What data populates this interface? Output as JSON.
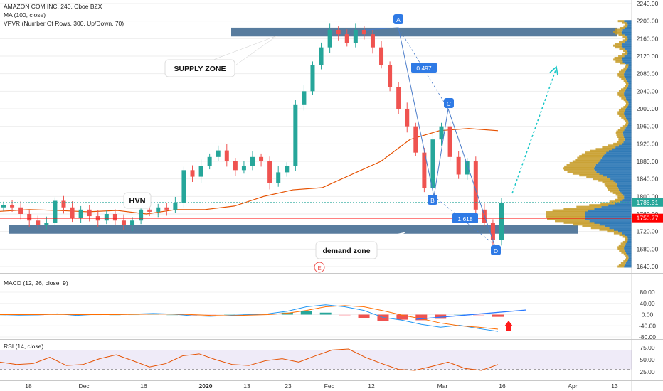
{
  "chart_data": [
    {
      "type": "candlestick",
      "legend": {
        "symbol_line": "AMAZON COM INC, 240, Cboe BZX",
        "ma_line": "MA (100, close)",
        "vpvr_line": "VPVR (Number Of Rows, 300, Up/Down, 70)"
      },
      "y_axis": {
        "range": [
          1620,
          2240
        ],
        "ticks": [
          "2240.00",
          "2200.00",
          "2160.00",
          "2120.00",
          "2080.00",
          "2040.00",
          "2000.00",
          "1960.00",
          "1920.00",
          "1880.00",
          "1840.00",
          "1800.00",
          "1760.00",
          "1720.00",
          "1680.00",
          "1640.00"
        ]
      },
      "price_labels": {
        "last": "1786.31",
        "red_line": "1750.77"
      },
      "colors": {
        "up": "#26a69a",
        "down": "#ef5350",
        "ma": "#e65100",
        "zone": "#4f7599",
        "vpvr_up": "#1e6fb0",
        "vpvr_down": "#c59a23",
        "red_line": "#ff0000"
      },
      "ma_values": [
        1766,
        1770,
        1768,
        1765,
        1768,
        1760,
        1770,
        1770,
        1778,
        1800,
        1815,
        1820,
        1850,
        1880,
        1930,
        1950,
        1955,
        1950
      ],
      "candles_close": [
        1780,
        1775,
        1760,
        1745,
        1735,
        1740,
        1790,
        1775,
        1750,
        1770,
        1755,
        1745,
        1760,
        1745,
        1735,
        1745,
        1770,
        1765,
        1775,
        1770,
        1785,
        1860,
        1845,
        1870,
        1890,
        1905,
        1880,
        1860,
        1870,
        1890,
        1880,
        1830,
        1855,
        1870,
        2010,
        2040,
        2100,
        2140,
        2180,
        2170,
        2150,
        2180,
        2170,
        2140,
        2100,
        2050,
        2000,
        1960,
        1900,
        1820,
        1930,
        1960,
        1890,
        1850,
        1880,
        1770,
        1740,
        1700,
        1786
      ],
      "annotations": {
        "supply_zone": "SUPPLY ZONE",
        "hvn": "HVN",
        "demand_zone": "demand zone",
        "point_a": "A",
        "point_b": "B",
        "point_c": "C",
        "point_d": "D",
        "ratio_1": "0.497",
        "ratio_2": "1.618",
        "event": "E"
      },
      "supply_zone_range": [
        2165,
        2185
      ],
      "demand_zone_range": [
        1715,
        1735
      ],
      "harmonic_points": {
        "A": 2185,
        "B": 1800,
        "C": 2000,
        "D": 1690
      }
    },
    {
      "type": "line",
      "title": "MACD (12, 26, close, 9)",
      "y_axis": {
        "range": [
          -95,
          95
        ],
        "ticks": [
          "80.00",
          "40.00",
          "0.00",
          "-40.00",
          "-80.00"
        ]
      },
      "series": {
        "macd": [
          0,
          -2,
          -1,
          3,
          -3,
          1,
          0,
          2,
          4,
          2,
          -4,
          -6,
          -3,
          0,
          3,
          12,
          28,
          35,
          28,
          15,
          -10,
          -20,
          -35,
          -45,
          -38,
          -50,
          -60
        ],
        "signal": [
          0,
          0,
          0,
          1,
          0,
          0,
          0,
          1,
          2,
          2,
          0,
          -3,
          -4,
          -2,
          0,
          5,
          15,
          28,
          32,
          28,
          14,
          -2,
          -15,
          -30,
          -40,
          -45,
          -52
        ],
        "histogram": [
          0,
          -2,
          -1,
          2,
          -3,
          1,
          0,
          1,
          2,
          0,
          -4,
          -3,
          1,
          2,
          3,
          7,
          13,
          7,
          -4,
          -13,
          -24,
          -18,
          -20,
          -15,
          2,
          -5,
          -8
        ]
      }
    },
    {
      "type": "line",
      "title": "RSI (14, close)",
      "y_axis": {
        "range": [
          15,
          85
        ],
        "ticks": [
          "75.00",
          "50.00",
          "25.00"
        ]
      },
      "series": {
        "rsi": [
          45,
          40,
          42,
          55,
          38,
          40,
          52,
          60,
          48,
          35,
          42,
          58,
          62,
          50,
          40,
          38,
          48,
          52,
          45,
          58,
          70,
          72,
          55,
          42,
          30,
          28,
          36,
          45,
          32,
          28,
          40
        ]
      }
    }
  ],
  "x_axis": {
    "ticks": [
      "18",
      "Dec",
      "16",
      "2020",
      "13",
      "23",
      "Feb",
      "12",
      "Mar",
      "16",
      "Apr",
      "13"
    ]
  }
}
